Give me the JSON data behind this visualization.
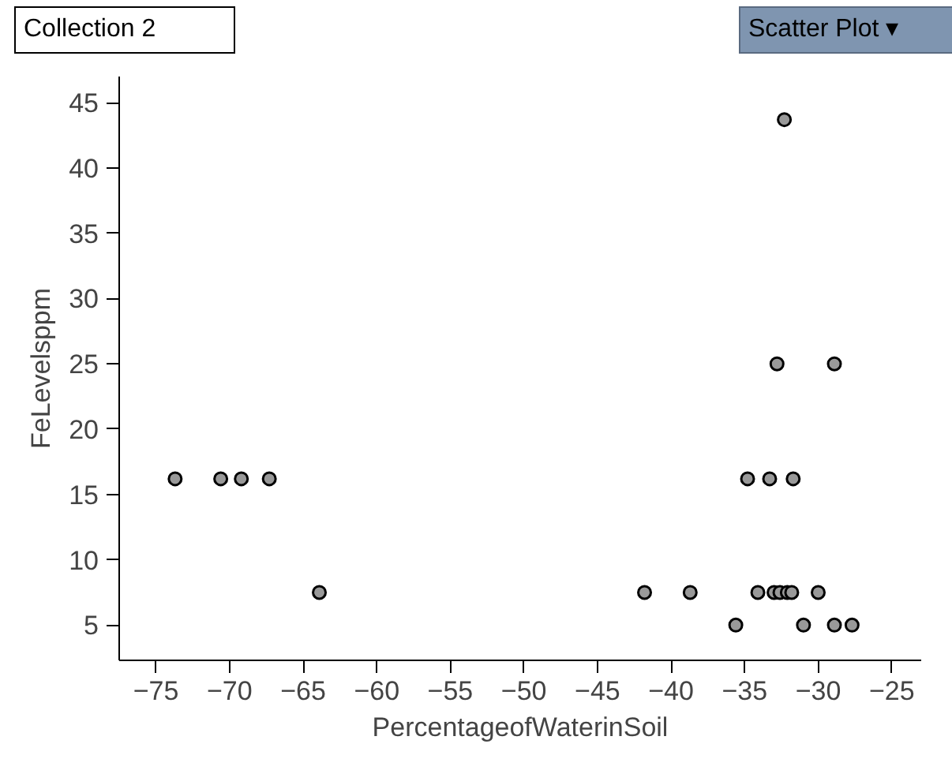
{
  "chart_data": {
    "type": "scatter",
    "xlabel": "PercentageofWaterinSoil",
    "ylabel": "FeLevelsppm",
    "annotations": [
      "Collection 2",
      "Scatter Plot ▾"
    ],
    "x": [
      -73.7,
      -70.6,
      -69.2,
      -67.3,
      -63.9,
      -34.8,
      -33.3,
      -31.7,
      -41.8,
      -38.7,
      -34.1,
      -33.0,
      -32.6,
      -32.1,
      -31.8,
      -30.0,
      -35.6,
      -31.0,
      -28.9,
      -27.7,
      -32.3,
      -32.8,
      -28.9
    ],
    "values": [
      16.2,
      16.2,
      16.2,
      16.2,
      7.5,
      16.2,
      16.2,
      16.2,
      7.5,
      7.5,
      7.5,
      7.5,
      7.5,
      7.5,
      7.5,
      7.5,
      5,
      5,
      5,
      5,
      43.7,
      25,
      25
    ],
    "color": "#999999",
    "marker": "circle",
    "grid": false,
    "xlim": [
      -77.5,
      -23
    ],
    "ylim": [
      2.3,
      47
    ],
    "xticks": [
      -75,
      -70,
      -65,
      -60,
      -55,
      -50,
      -45,
      -40,
      -35,
      -30,
      -25
    ],
    "yticks": [
      5,
      10,
      15,
      20,
      25,
      30,
      35,
      40,
      45
    ]
  }
}
